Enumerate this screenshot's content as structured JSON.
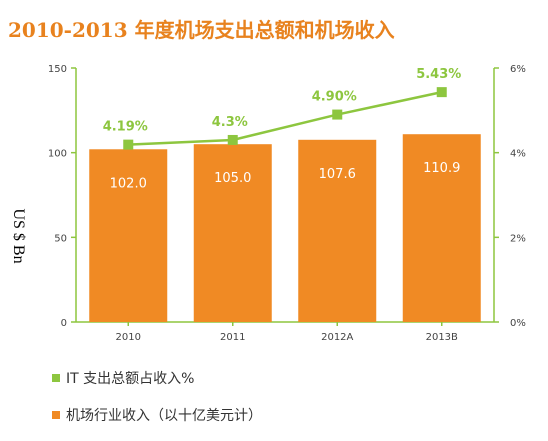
{
  "title": "2010-2013 年度机场支出总额和机场收入",
  "chart_data": {
    "type": "bar",
    "categories": [
      "2010",
      "2011",
      "2012A",
      "2013B"
    ],
    "series": [
      {
        "name": "机场行业收入（以十亿美元计）",
        "type": "bar",
        "values": [
          102.0,
          105.0,
          107.6,
          110.9
        ],
        "labels": [
          "102.0",
          "105.0",
          "107.6",
          "110.9"
        ],
        "color": "#f08a24",
        "axis": "left"
      },
      {
        "name": "IT 支出总额占收入%",
        "type": "line",
        "values": [
          4.19,
          4.3,
          4.9,
          5.43
        ],
        "labels": [
          "4.19%",
          "4.3%",
          "4.90%",
          "5.43%"
        ],
        "color": "#8dc63f",
        "axis": "right"
      }
    ],
    "ylabel": "US $ Bn",
    "ylim": [
      0,
      150
    ],
    "yticks": [
      "0",
      "50",
      "100",
      "150"
    ],
    "y2lim": [
      0,
      6
    ],
    "y2ticks": [
      "0%",
      "2%",
      "4%",
      "6%"
    ],
    "grid": false,
    "legend_position": "bottom-left"
  }
}
